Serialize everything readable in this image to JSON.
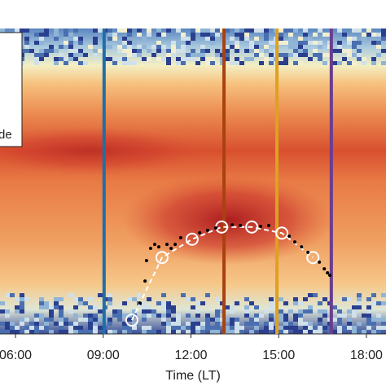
{
  "chart_data": {
    "type": "scatter",
    "x_label": "Time (LT)",
    "legend_text": "de",
    "xlim": [
      5.47,
      18.67
    ],
    "xticks": [
      {
        "value": 6,
        "label": "06:00"
      },
      {
        "value": 9,
        "label": "09:00"
      },
      {
        "value": 12,
        "label": "12:00"
      },
      {
        "value": 15,
        "label": "15:00"
      },
      {
        "value": 18,
        "label": "18:00"
      }
    ],
    "ylim": [
      0,
      1
    ],
    "vlines": [
      {
        "value": 9.03,
        "color": "#1f6fa8"
      },
      {
        "value": 13.13,
        "color": "#a8420f"
      },
      {
        "value": 14.94,
        "color": "#e0a020"
      },
      {
        "value": 16.8,
        "color": "#6a3d8f"
      }
    ],
    "series": [
      {
        "style": "circle-dashed",
        "color": "#ffffff",
        "x": [
          9.98,
          11.01,
          12.04,
          13.05,
          14.08,
          15.11,
          16.17
        ],
        "values": [
          0.045,
          0.25,
          0.31,
          0.35,
          0.35,
          0.33,
          0.25
        ]
      },
      {
        "style": "dot",
        "color": "#000000",
        "x": [
          10.26,
          10.43,
          10.48,
          10.62,
          10.76,
          10.9,
          11.18,
          11.32,
          11.46,
          11.65,
          12.3,
          12.57,
          12.85,
          13.41,
          13.69,
          14.38,
          14.66,
          15.36,
          15.55,
          15.78,
          16.0,
          16.39,
          16.56,
          16.67,
          16.75
        ],
        "values": [
          0.101,
          0.173,
          0.24,
          0.28,
          0.293,
          0.285,
          0.293,
          0.28,
          0.293,
          0.315,
          0.331,
          0.339,
          0.347,
          0.357,
          0.355,
          0.352,
          0.355,
          0.32,
          0.301,
          0.285,
          0.267,
          0.235,
          0.213,
          0.2,
          0.192
        ]
      }
    ]
  }
}
